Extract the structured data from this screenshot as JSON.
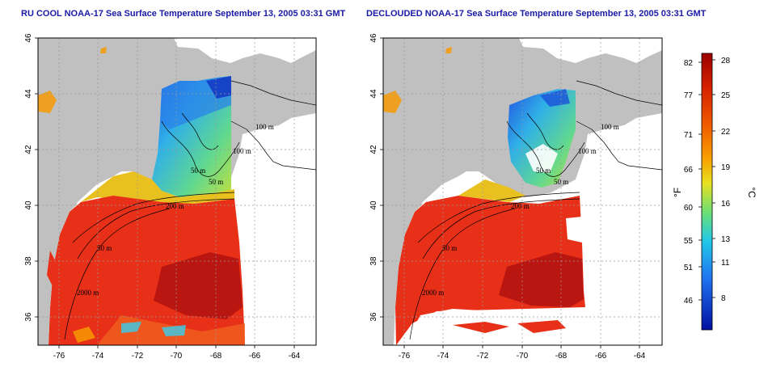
{
  "panels": [
    {
      "title": "RU COOL NOAA-17 Sea Surface Temperature September 13, 2005 03:31 GMT",
      "x_ticks": [
        "-76",
        "-74",
        "-72",
        "-70",
        "-68",
        "-66",
        "-64"
      ],
      "y_ticks": [
        "36",
        "38",
        "40",
        "42",
        "44",
        "46"
      ],
      "contour_labels": [
        "100 m",
        "100 m",
        "50 m",
        "50 m",
        "200 m",
        "50 m",
        "2000 m"
      ]
    },
    {
      "title": "DECLOUDED NOAA-17 Sea Surface Temperature September 13, 2005 03:31 GMT",
      "x_ticks": [
        "-76",
        "-74",
        "-72",
        "-70",
        "-68",
        "-66",
        "-64"
      ],
      "y_ticks": [
        "36",
        "38",
        "40",
        "42",
        "44",
        "46"
      ],
      "contour_labels": [
        "100 m",
        "100 m",
        "50 m",
        "50 m",
        "200 m",
        "50 m",
        "2000 m"
      ]
    }
  ],
  "colorbar": {
    "f_label": "°F",
    "c_label": "°C",
    "f_ticks": [
      "82",
      "77",
      "71",
      "66",
      "60",
      "55",
      "51",
      "46"
    ],
    "c_ticks": [
      "28",
      "25",
      "22",
      "19",
      "16",
      "13",
      "11",
      "8"
    ],
    "colors": [
      "#9b0000",
      "#d42000",
      "#f05a00",
      "#f8a000",
      "#e8e020",
      "#70e070",
      "#20c8e8",
      "#2070f0",
      "#0010a0"
    ]
  },
  "colors": {
    "land": "#c0c0c0",
    "warm_water": "#e83018",
    "dark_warm": "#b01010",
    "cold_water": "#40c0e0"
  }
}
